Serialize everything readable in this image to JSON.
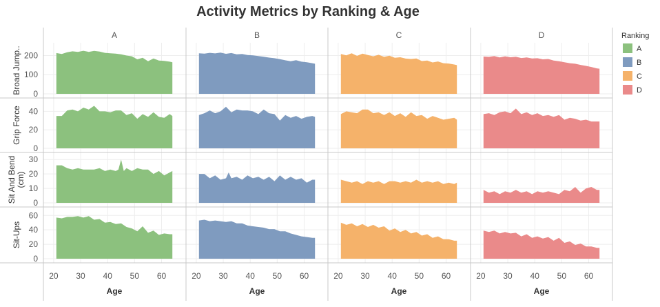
{
  "chart_data": {
    "type": "area",
    "title": "Activity Metrics by Ranking & Age",
    "xlabel": "Age",
    "x_ticks": [
      20,
      30,
      40,
      50,
      60
    ],
    "xlim": [
      19,
      66
    ],
    "legend": {
      "title": "Ranking",
      "position": "right",
      "items": [
        {
          "label": "A",
          "color": "#8cc17e"
        },
        {
          "label": "B",
          "color": "#7f9bbf"
        },
        {
          "label": "C",
          "color": "#f5b26a"
        },
        {
          "label": "D",
          "color": "#ea8a8a"
        }
      ]
    },
    "columns": [
      "A",
      "B",
      "C",
      "D"
    ],
    "rows": [
      {
        "label": "Broad Jump..",
        "ylim": [
          0,
          245
        ],
        "y_ticks": [
          0,
          100,
          200
        ],
        "series": {
          "A": {
            "x": [
              21,
              23,
              25,
              27,
              29,
              31,
              33,
              35,
              37,
              39,
              41,
              43,
              45,
              47,
              49,
              51,
              53,
              55,
              57,
              59,
              61,
              63,
              64
            ],
            "y": [
              213,
              208,
              217,
              222,
              219,
              225,
              219,
              224,
              221,
              214,
              212,
              210,
              206,
              200,
              196,
              180,
              188,
              170,
              185,
              174,
              172,
              168,
              165
            ]
          },
          "B": {
            "x": [
              21,
              23,
              25,
              27,
              29,
              31,
              33,
              35,
              37,
              39,
              41,
              43,
              45,
              47,
              49,
              51,
              53,
              55,
              57,
              59,
              61,
              63,
              64
            ],
            "y": [
              212,
              210,
              214,
              211,
              215,
              209,
              213,
              206,
              208,
              203,
              201,
              197,
              194,
              189,
              186,
              181,
              175,
              170,
              176,
              168,
              165,
              160,
              157
            ]
          },
          "C": {
            "x": [
              21,
              23,
              25,
              27,
              29,
              31,
              33,
              35,
              37,
              39,
              41,
              43,
              45,
              47,
              49,
              51,
              53,
              55,
              57,
              59,
              61,
              63,
              64
            ],
            "y": [
              208,
              201,
              212,
              198,
              210,
              203,
              196,
              204,
              193,
              199,
              188,
              191,
              184,
              182,
              185,
              171,
              174,
              164,
              169,
              160,
              158,
              153,
              150
            ]
          },
          "D": {
            "x": [
              21,
              23,
              25,
              27,
              29,
              31,
              33,
              35,
              37,
              39,
              41,
              43,
              45,
              47,
              49,
              51,
              53,
              55,
              57,
              59,
              61,
              63,
              64
            ],
            "y": [
              195,
              193,
              197,
              190,
              196,
              191,
              194,
              187,
              190,
              185,
              186,
              180,
              182,
              174,
              170,
              165,
              160,
              157,
              151,
              146,
              140,
              133,
              131
            ]
          }
        }
      },
      {
        "label": "Grip Force",
        "ylim": [
          0,
          50
        ],
        "y_ticks": [
          0,
          20,
          40
        ],
        "series": {
          "A": {
            "x": [
              21,
              23,
              25,
              27,
              29,
              31,
              33,
              35,
              37,
              39,
              41,
              43,
              45,
              47,
              49,
              51,
              53,
              55,
              57,
              59,
              61,
              63,
              64
            ],
            "y": [
              35,
              35,
              41,
              42,
              40,
              44,
              42,
              46,
              40,
              40,
              39,
              41,
              41,
              36,
              38,
              32,
              37,
              34,
              39,
              34,
              33,
              37,
              35
            ]
          },
          "B": {
            "x": [
              21,
              23,
              25,
              27,
              29,
              31,
              33,
              35,
              37,
              39,
              41,
              43,
              45,
              47,
              49,
              51,
              53,
              55,
              57,
              59,
              61,
              63,
              64
            ],
            "y": [
              36,
              38,
              41,
              38,
              40,
              45,
              39,
              42,
              41,
              41,
              40,
              37,
              42,
              38,
              37,
              30,
              36,
              33,
              35,
              32,
              34,
              35,
              34
            ]
          },
          "C": {
            "x": [
              21,
              23,
              25,
              27,
              29,
              31,
              33,
              35,
              37,
              39,
              41,
              43,
              45,
              47,
              49,
              51,
              53,
              55,
              57,
              59,
              61,
              63,
              64
            ],
            "y": [
              37,
              40,
              39,
              38,
              42,
              42,
              38,
              39,
              36,
              39,
              35,
              38,
              34,
              39,
              35,
              36,
              32,
              35,
              33,
              31,
              32,
              33,
              31
            ]
          },
          "D": {
            "x": [
              21,
              23,
              25,
              27,
              29,
              31,
              33,
              35,
              37,
              39,
              41,
              43,
              45,
              47,
              49,
              51,
              53,
              55,
              57,
              59,
              61,
              63,
              64
            ],
            "y": [
              37,
              38,
              36,
              39,
              40,
              38,
              43,
              37,
              39,
              36,
              38,
              35,
              36,
              34,
              36,
              31,
              33,
              32,
              30,
              31,
              29,
              29,
              29
            ]
          }
        }
      },
      {
        "label": "Sit And Bend (cm)",
        "ylim": [
          0,
          32
        ],
        "y_ticks": [
          0,
          10,
          20,
          30
        ],
        "series": {
          "A": {
            "x": [
              21,
              23,
              25,
              27,
              29,
              31,
              33,
              35,
              37,
              39,
              41,
              43,
              44,
              45,
              46,
              47,
              49,
              51,
              53,
              55,
              57,
              59,
              61,
              63,
              64
            ],
            "y": [
              26,
              26,
              24,
              23,
              24,
              23,
              23,
              23,
              24,
              22,
              23,
              22,
              23,
              30,
              22,
              24,
              22,
              24,
              23,
              23,
              20,
              22,
              19,
              21,
              22
            ]
          },
          "B": {
            "x": [
              21,
              23,
              25,
              27,
              29,
              31,
              32,
              33,
              35,
              37,
              39,
              41,
              43,
              45,
              47,
              49,
              51,
              53,
              55,
              57,
              59,
              61,
              63,
              64
            ],
            "y": [
              20,
              20,
              17,
              19,
              16,
              17,
              21,
              17,
              18,
              16,
              19,
              17,
              18,
              16,
              18,
              15,
              19,
              16,
              18,
              16,
              17,
              14,
              16,
              16
            ]
          },
          "C": {
            "x": [
              21,
              23,
              25,
              27,
              29,
              31,
              33,
              35,
              37,
              39,
              41,
              43,
              45,
              47,
              49,
              51,
              53,
              55,
              57,
              59,
              61,
              63,
              64
            ],
            "y": [
              16,
              15,
              14,
              15,
              13,
              15,
              14,
              15,
              13,
              15,
              15,
              14,
              15,
              14,
              16,
              14,
              15,
              14,
              15,
              13,
              14,
              13,
              14
            ]
          },
          "D": {
            "x": [
              21,
              23,
              25,
              27,
              29,
              31,
              33,
              35,
              37,
              39,
              41,
              43,
              45,
              47,
              49,
              51,
              53,
              55,
              57,
              59,
              61,
              63,
              64
            ],
            "y": [
              9,
              7,
              8,
              6,
              8,
              7,
              9,
              7,
              8,
              6,
              8,
              7,
              8,
              7,
              6,
              9,
              8,
              11,
              7,
              10,
              11,
              9,
              9
            ]
          }
        }
      },
      {
        "label": "Sit-Ups",
        "ylim": [
          0,
          66
        ],
        "y_ticks": [
          0,
          20,
          40,
          60
        ],
        "series": {
          "A": {
            "x": [
              21,
              23,
              25,
              27,
              29,
              31,
              33,
              35,
              37,
              39,
              41,
              43,
              45,
              47,
              49,
              51,
              53,
              55,
              57,
              59,
              61,
              63,
              64
            ],
            "y": [
              57,
              56,
              58,
              58,
              59,
              57,
              59,
              54,
              55,
              50,
              51,
              48,
              49,
              44,
              42,
              38,
              45,
              36,
              39,
              33,
              35,
              34,
              34
            ]
          },
          "B": {
            "x": [
              21,
              23,
              25,
              27,
              29,
              31,
              33,
              35,
              37,
              39,
              41,
              43,
              45,
              47,
              49,
              51,
              53,
              55,
              57,
              59,
              61,
              63,
              64
            ],
            "y": [
              53,
              54,
              52,
              53,
              52,
              51,
              52,
              49,
              49,
              46,
              45,
              44,
              43,
              41,
              41,
              38,
              38,
              35,
              33,
              31,
              30,
              29,
              29
            ]
          },
          "C": {
            "x": [
              21,
              23,
              25,
              27,
              29,
              31,
              33,
              35,
              37,
              39,
              41,
              43,
              45,
              47,
              49,
              51,
              53,
              55,
              57,
              59,
              61,
              63,
              64
            ],
            "y": [
              50,
              47,
              49,
              45,
              48,
              44,
              47,
              43,
              45,
              39,
              42,
              37,
              40,
              35,
              37,
              32,
              34,
              29,
              31,
              27,
              27,
              25,
              25
            ]
          },
          "D": {
            "x": [
              21,
              23,
              25,
              27,
              29,
              31,
              33,
              35,
              37,
              39,
              41,
              43,
              45,
              47,
              49,
              51,
              53,
              55,
              57,
              59,
              61,
              63,
              64
            ],
            "y": [
              39,
              37,
              39,
              35,
              37,
              35,
              36,
              31,
              34,
              29,
              31,
              28,
              30,
              25,
              29,
              22,
              24,
              19,
              21,
              17,
              17,
              15,
              15
            ]
          }
        }
      }
    ]
  }
}
